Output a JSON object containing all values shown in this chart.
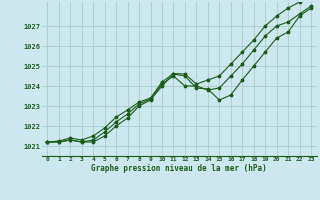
{
  "xlabel": "Graphe pression niveau de la mer (hPa)",
  "xlim": [
    -0.5,
    23.5
  ],
  "ylim": [
    1020.5,
    1028.2
  ],
  "yticks": [
    1021,
    1022,
    1023,
    1024,
    1025,
    1026,
    1027
  ],
  "xticks": [
    0,
    1,
    2,
    3,
    4,
    5,
    6,
    7,
    8,
    9,
    10,
    11,
    12,
    13,
    14,
    15,
    16,
    17,
    18,
    19,
    20,
    21,
    22,
    23
  ],
  "xtick_labels": [
    "0",
    "1",
    "2",
    "3",
    "4",
    "5",
    "6",
    "7",
    "8",
    "9",
    "10",
    "11",
    "12",
    "13",
    "14",
    "15",
    "16",
    "17",
    "18",
    "19",
    "20",
    "21",
    "22",
    "23"
  ],
  "bg_color": "#cce8ee",
  "grid_color": "#aacccc",
  "line_color": "#1a5c1a",
  "line_width": 0.8,
  "marker": "*",
  "marker_size": 2.5,
  "series": [
    [
      1021.2,
      1021.2,
      1021.3,
      1021.2,
      1021.2,
      1021.5,
      1022.0,
      1022.4,
      1023.0,
      1023.3,
      1024.0,
      1024.6,
      1024.5,
      1023.9,
      1023.85,
      1023.3,
      1023.55,
      1024.3,
      1025.0,
      1025.7,
      1026.4,
      1026.7,
      1027.5,
      1027.9
    ],
    [
      1021.2,
      1021.2,
      1021.3,
      1021.2,
      1021.3,
      1021.7,
      1022.2,
      1022.6,
      1023.1,
      1023.35,
      1024.1,
      1024.5,
      1024.0,
      1024.0,
      1023.8,
      1023.9,
      1024.5,
      1025.1,
      1025.8,
      1026.5,
      1027.0,
      1027.2,
      1027.6,
      1028.0
    ],
    [
      1021.2,
      1021.25,
      1021.4,
      1021.3,
      1021.5,
      1021.9,
      1022.45,
      1022.8,
      1023.2,
      1023.4,
      1024.2,
      1024.62,
      1024.6,
      1024.1,
      1024.3,
      1024.5,
      1025.1,
      1025.7,
      1026.3,
      1027.0,
      1027.5,
      1027.9,
      1028.2,
      1028.5
    ]
  ]
}
